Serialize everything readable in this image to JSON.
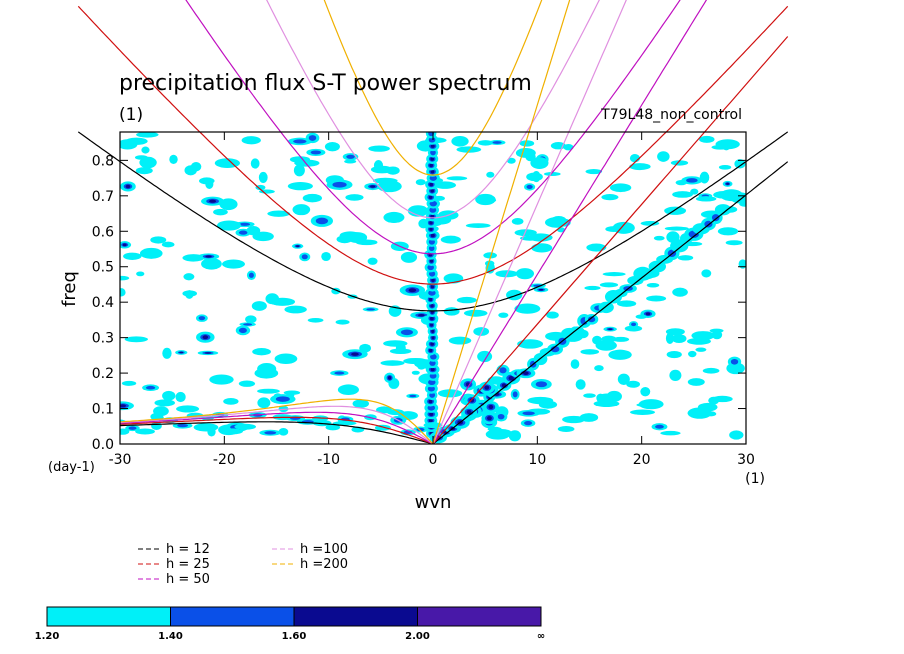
{
  "chart_data": {
    "type": "heatmap",
    "title": "precipitation flux S-T power spectrum",
    "subtitle_left": "(1)",
    "subtitle_right": "T79L48_non_control",
    "xlabel": "wvn",
    "ylabel": "freq",
    "x_unit": "(1)",
    "y_unit": "(day-1)",
    "xlim": [
      -30,
      30
    ],
    "ylim": [
      0,
      0.88
    ],
    "x_ticks": [
      -30,
      -20,
      -10,
      0,
      10,
      20,
      30
    ],
    "x_tick_labels": [
      "-30",
      "-20",
      "-10",
      "0",
      "10",
      "20",
      "30"
    ],
    "y_ticks": [
      0.0,
      0.1,
      0.2,
      0.3,
      0.4,
      0.5,
      0.6,
      0.7,
      0.8
    ],
    "y_tick_labels": [
      "0.0",
      "0.1",
      "0.2",
      "0.3",
      "0.4",
      "0.5",
      "0.6",
      "0.7",
      "0.8"
    ],
    "contour_levels": [
      1.2,
      1.4,
      1.6,
      2.0
    ],
    "colorbar": {
      "labels": [
        "1.20",
        "1.40",
        "1.60",
        "2.00",
        "∞"
      ],
      "colors": [
        "#00f0f8",
        "#0a50e8",
        "#0a0a90",
        "#4818a8"
      ]
    },
    "dispersion_legend": [
      {
        "label": "h = 12",
        "h": 12,
        "color": "#000000"
      },
      {
        "label": "h = 25",
        "h": 25,
        "color": "#d01010"
      },
      {
        "label": "h = 50",
        "h": 50,
        "color": "#c010c0"
      },
      {
        "label": "h =100",
        "h": 100,
        "color": "#e090e0"
      },
      {
        "label": "h =200",
        "h": 200,
        "color": "#f0b000"
      }
    ]
  }
}
